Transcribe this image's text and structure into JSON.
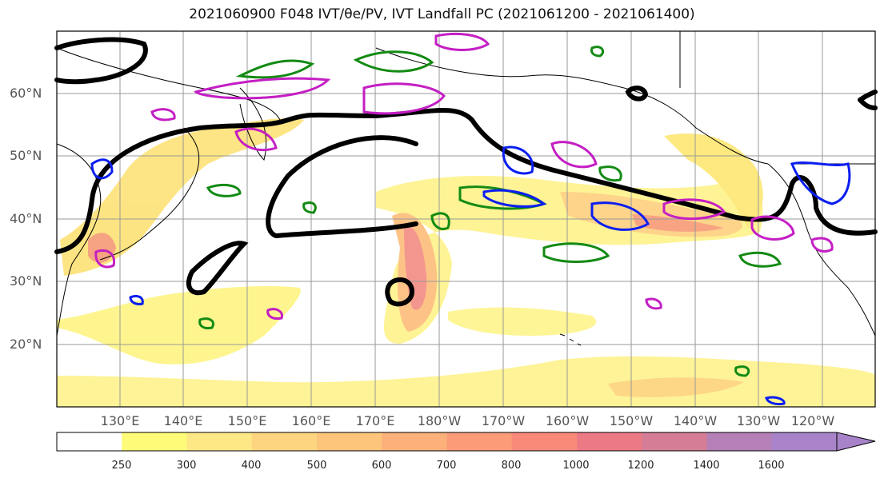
{
  "title": "2021060900 F048 IVT/θe/PV, IVT Landfall PC (2021061200 - 2021061400)",
  "map": {
    "lat_labels": [
      "60°N",
      "50°N",
      "40°N",
      "30°N",
      "20°N"
    ],
    "lon_labels": [
      "130°E",
      "140°E",
      "150°E",
      "160°E",
      "170°E",
      "180°W",
      "170°W",
      "160°W",
      "150°W",
      "140°W",
      "130°W",
      "120°W"
    ]
  },
  "colorbar": {
    "ticks": [
      "250",
      "300",
      "400",
      "500",
      "600",
      "700",
      "800",
      "1000",
      "1200",
      "1400",
      "1600"
    ],
    "colors": [
      "#ffffff",
      "#fefb78",
      "#fde885",
      "#fdd480",
      "#fdc57c",
      "#fdb07a",
      "#fb9b78",
      "#f98a7a",
      "#ec7a85",
      "#d57d96",
      "#b57fb8",
      "#a883c9"
    ]
  },
  "contour_colors": {
    "thick": "#000000",
    "green": "#138a13",
    "blue": "#0a1ef0",
    "magenta": "#c41ec4"
  }
}
